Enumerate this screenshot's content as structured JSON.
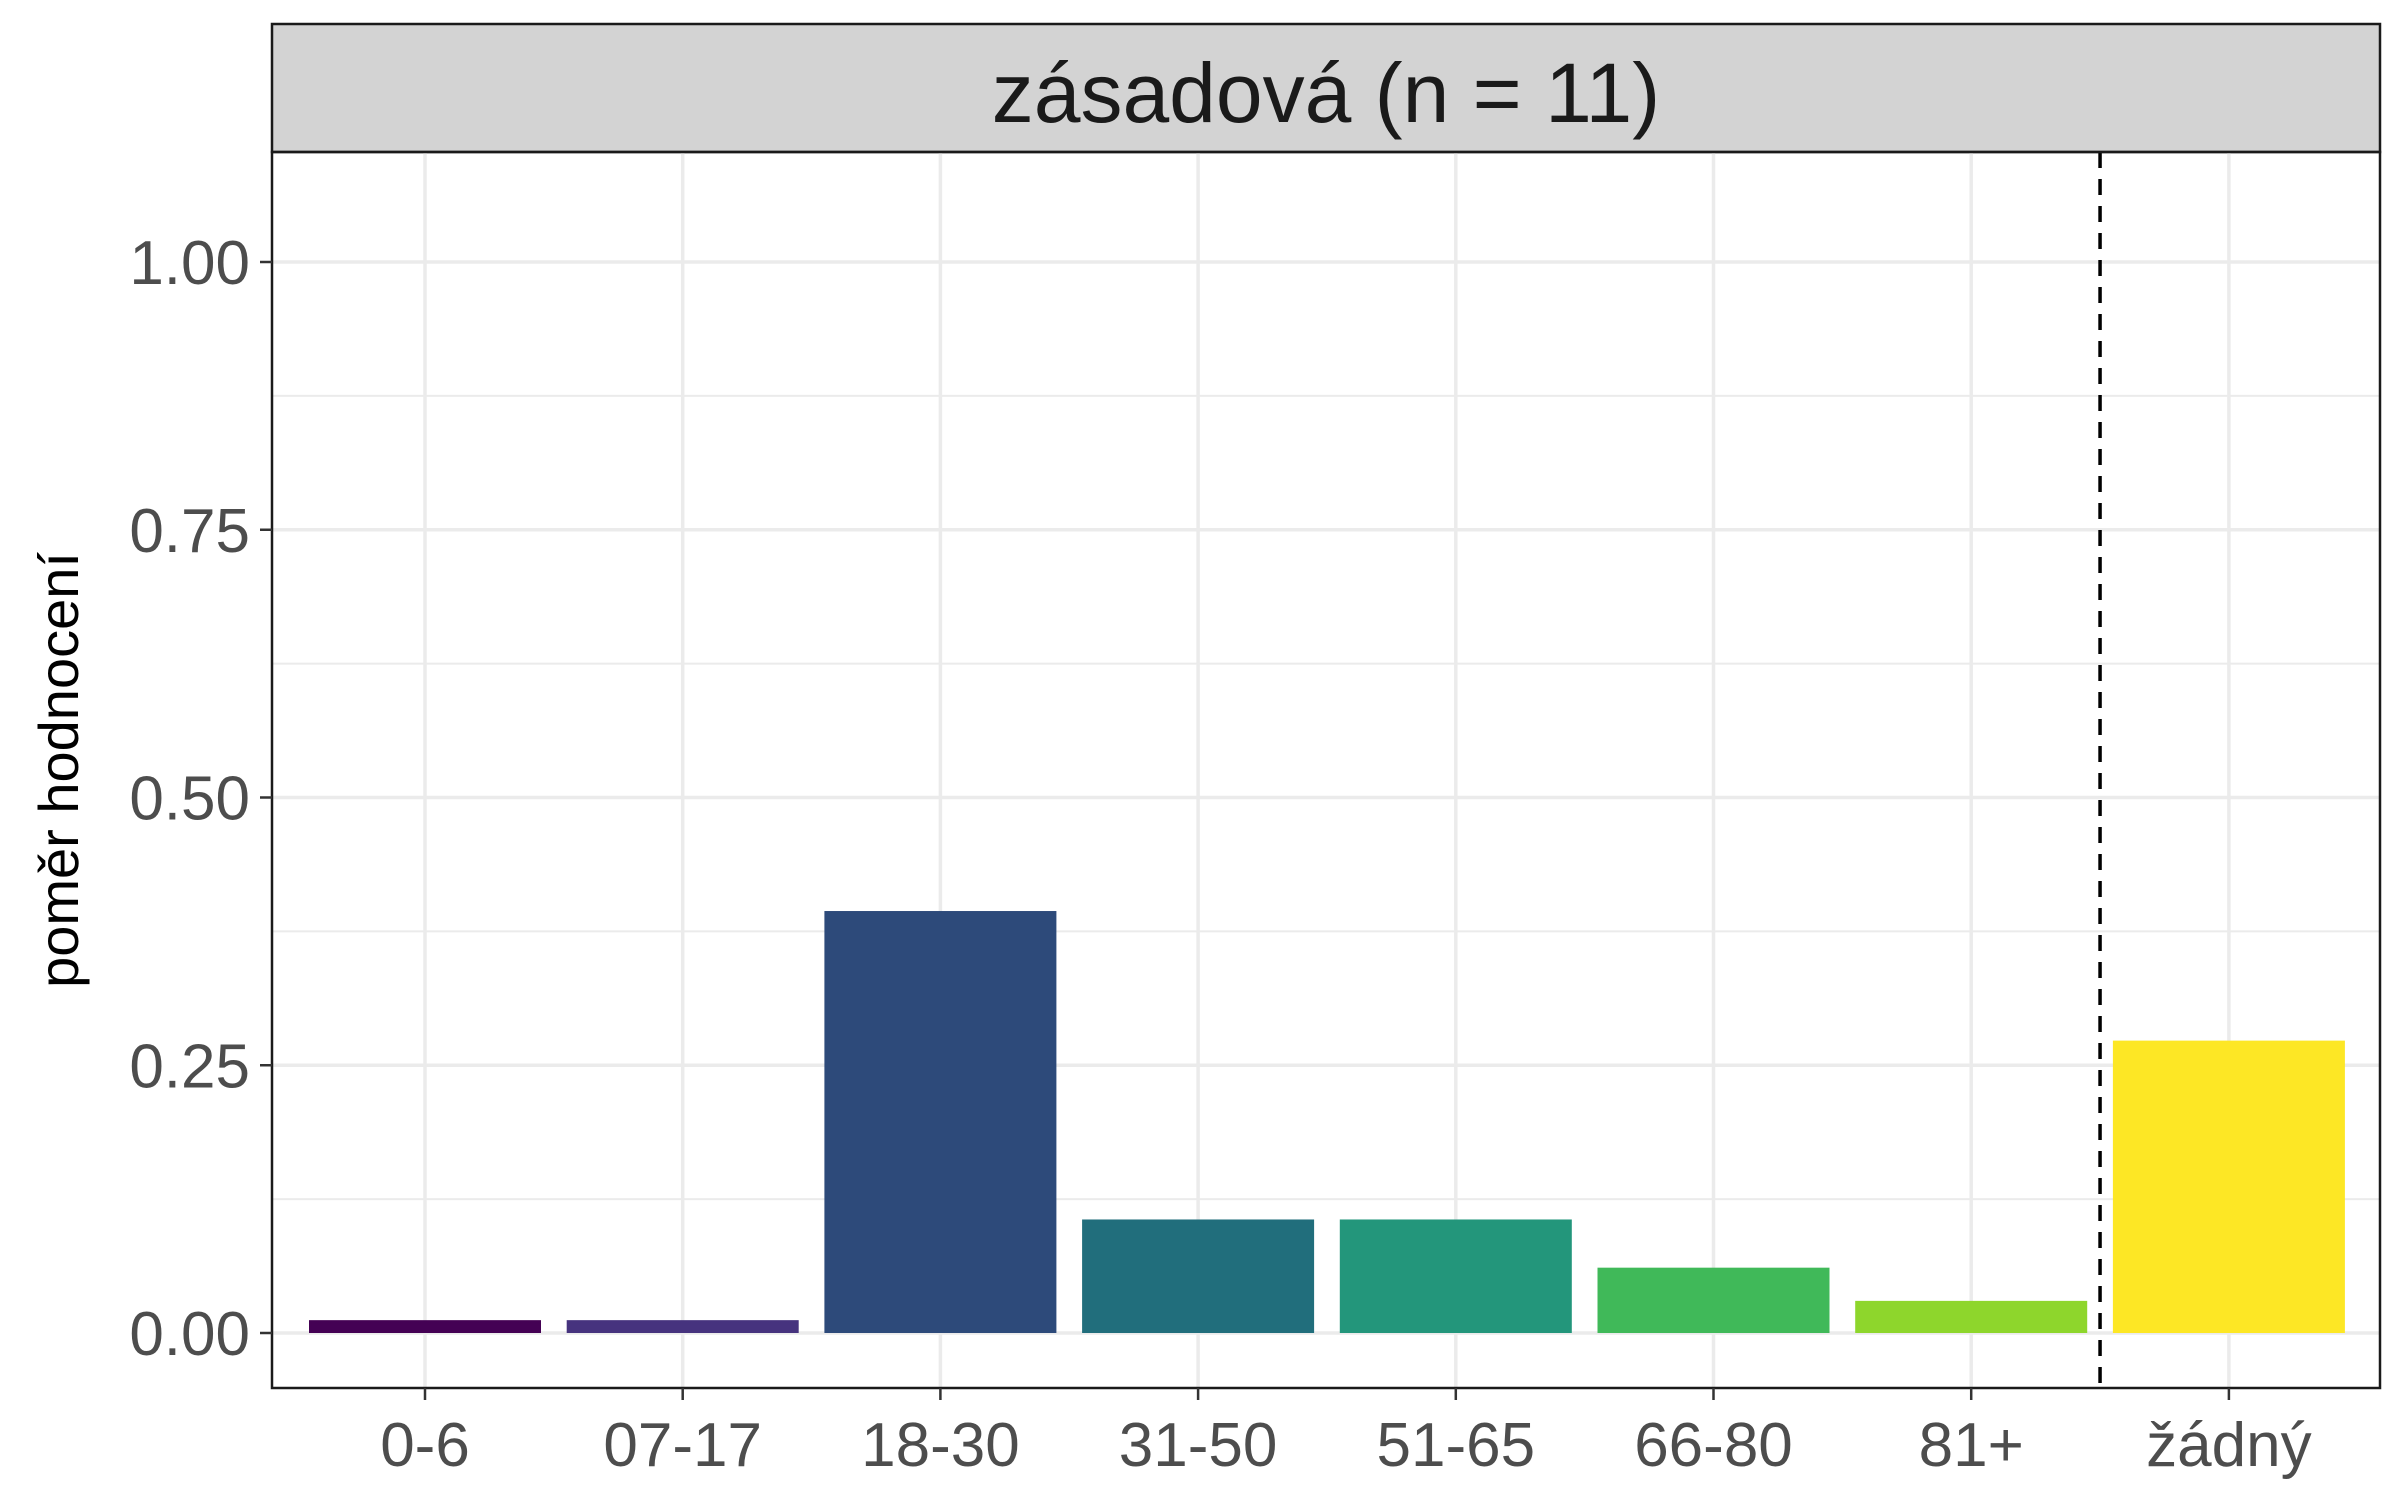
{
  "chart_data": {
    "type": "bar",
    "title": "zásadová (n = 11)",
    "xlabel": "",
    "ylabel": "poměr hodnocení",
    "categories": [
      "0-6",
      "07-17",
      "18-30",
      "31-50",
      "51-65",
      "66-80",
      "81+",
      "žádný"
    ],
    "values": [
      0.012,
      0.012,
      0.394,
      0.106,
      0.106,
      0.061,
      0.03,
      0.273
    ],
    "colors": [
      "#440154",
      "#46337e",
      "#2d4a7a",
      "#216e7c",
      "#23967b",
      "#40b959",
      "#8ed62c",
      "#fde725"
    ],
    "ylim": [
      0,
      1.1
    ],
    "y_ticks": [
      "0.00",
      "0.25",
      "0.50",
      "0.75",
      "1.00"
    ],
    "y_tick_values": [
      0,
      0.25,
      0.5,
      0.75,
      1.0
    ],
    "reference_line": {
      "between": [
        "81+",
        "žádný"
      ],
      "style": "dashed",
      "color": "#000000"
    },
    "grid": true,
    "legend": "none",
    "theme": "bw"
  }
}
